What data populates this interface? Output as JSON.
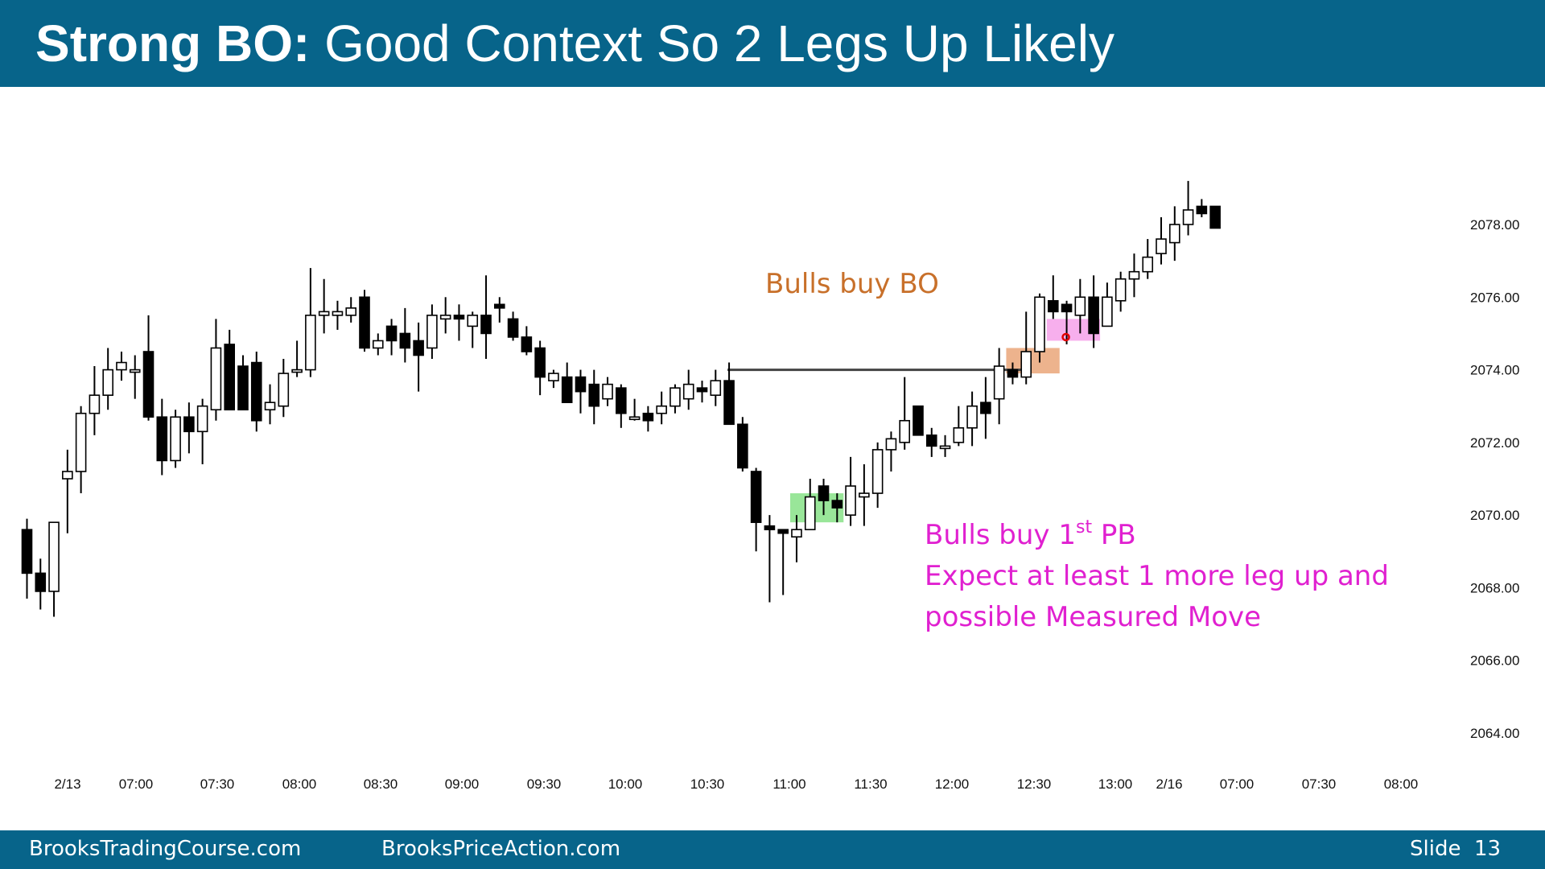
{
  "header": {
    "title_bold": "Strong BO:",
    "title_rest": "Good Context So 2 Legs Up Likely"
  },
  "footer": {
    "left": "BrooksTradingCourse.com",
    "center": "BrooksPriceAction.com",
    "slide_label": "Slide",
    "slide_number": "13"
  },
  "colors": {
    "header_bg": "#07648a",
    "bear_body": "#000000",
    "bull_body": "#ffffff",
    "annotation_bo": "#c8702a",
    "annotation_pb": "#e020d0",
    "zone_green": "#7fe07f",
    "zone_orange": "#e8a070",
    "zone_pink": "#f59be8",
    "marker_red": "#e00000"
  },
  "chart_data": {
    "type": "candlestick",
    "title": "",
    "y_axis": {
      "side": "right",
      "ylim": [
        2062.4,
        2080.6
      ],
      "ticks": [
        "2064.00",
        "2066.00",
        "2068.00",
        "2070.00",
        "2072.00",
        "2074.00",
        "2076.00",
        "2078.00"
      ]
    },
    "x_axis": {
      "tick_labels": [
        "2/13",
        "07:00",
        "07:30",
        "08:00",
        "08:30",
        "09:00",
        "09:30",
        "10:00",
        "10:30",
        "11:00",
        "11:30",
        "12:00",
        "12:30",
        "13:00",
        "2/16",
        "07:00",
        "07:30",
        "08:00"
      ]
    },
    "grid": false,
    "legend": "none",
    "bars": [
      {
        "o": 2069.6,
        "h": 2069.9,
        "l": 2067.7,
        "c": 2068.4
      },
      {
        "o": 2068.4,
        "h": 2068.8,
        "l": 2067.4,
        "c": 2067.9
      },
      {
        "o": 2067.9,
        "h": 2069.8,
        "l": 2067.2,
        "c": 2069.8
      },
      {
        "o": 2071.0,
        "h": 2071.8,
        "l": 2069.5,
        "c": 2071.2
      },
      {
        "o": 2071.2,
        "h": 2073.0,
        "l": 2070.6,
        "c": 2072.8
      },
      {
        "o": 2072.8,
        "h": 2074.1,
        "l": 2072.2,
        "c": 2073.3
      },
      {
        "o": 2073.3,
        "h": 2074.6,
        "l": 2072.9,
        "c": 2074.0
      },
      {
        "o": 2074.0,
        "h": 2074.5,
        "l": 2073.7,
        "c": 2074.2
      },
      {
        "o": 2074.0,
        "h": 2074.4,
        "l": 2073.2,
        "c": 2074.0
      },
      {
        "o": 2074.5,
        "h": 2075.5,
        "l": 2072.6,
        "c": 2072.7
      },
      {
        "o": 2072.7,
        "h": 2073.2,
        "l": 2071.1,
        "c": 2071.5
      },
      {
        "o": 2071.5,
        "h": 2072.9,
        "l": 2071.3,
        "c": 2072.7
      },
      {
        "o": 2072.7,
        "h": 2073.1,
        "l": 2071.7,
        "c": 2072.3
      },
      {
        "o": 2072.3,
        "h": 2073.2,
        "l": 2071.4,
        "c": 2073.0
      },
      {
        "o": 2072.9,
        "h": 2075.4,
        "l": 2072.6,
        "c": 2074.6
      },
      {
        "o": 2074.7,
        "h": 2075.1,
        "l": 2072.9,
        "c": 2072.9
      },
      {
        "o": 2074.1,
        "h": 2074.4,
        "l": 2072.9,
        "c": 2072.9
      },
      {
        "o": 2074.2,
        "h": 2074.5,
        "l": 2072.3,
        "c": 2072.6
      },
      {
        "o": 2072.9,
        "h": 2073.6,
        "l": 2072.5,
        "c": 2073.1
      },
      {
        "o": 2073.0,
        "h": 2074.3,
        "l": 2072.7,
        "c": 2073.9
      },
      {
        "o": 2074.0,
        "h": 2074.8,
        "l": 2073.8,
        "c": 2074.0
      },
      {
        "o": 2074.0,
        "h": 2076.8,
        "l": 2073.8,
        "c": 2075.5
      },
      {
        "o": 2075.5,
        "h": 2076.5,
        "l": 2075.0,
        "c": 2075.6
      },
      {
        "o": 2075.5,
        "h": 2075.9,
        "l": 2075.1,
        "c": 2075.6
      },
      {
        "o": 2075.5,
        "h": 2076.0,
        "l": 2075.3,
        "c": 2075.7
      },
      {
        "o": 2076.0,
        "h": 2076.2,
        "l": 2074.5,
        "c": 2074.6
      },
      {
        "o": 2074.6,
        "h": 2075.0,
        "l": 2074.4,
        "c": 2074.8
      },
      {
        "o": 2075.2,
        "h": 2075.4,
        "l": 2074.4,
        "c": 2074.8
      },
      {
        "o": 2075.0,
        "h": 2075.7,
        "l": 2074.2,
        "c": 2074.6
      },
      {
        "o": 2074.8,
        "h": 2075.3,
        "l": 2073.4,
        "c": 2074.4
      },
      {
        "o": 2074.6,
        "h": 2075.8,
        "l": 2074.3,
        "c": 2075.5
      },
      {
        "o": 2075.4,
        "h": 2076.0,
        "l": 2075.0,
        "c": 2075.5
      },
      {
        "o": 2075.5,
        "h": 2075.8,
        "l": 2074.8,
        "c": 2075.4
      },
      {
        "o": 2075.2,
        "h": 2075.6,
        "l": 2074.6,
        "c": 2075.5
      },
      {
        "o": 2075.5,
        "h": 2076.6,
        "l": 2074.3,
        "c": 2075.0
      },
      {
        "o": 2075.8,
        "h": 2076.0,
        "l": 2075.3,
        "c": 2075.7
      },
      {
        "o": 2075.4,
        "h": 2075.6,
        "l": 2074.8,
        "c": 2074.9
      },
      {
        "o": 2074.9,
        "h": 2075.2,
        "l": 2074.4,
        "c": 2074.5
      },
      {
        "o": 2074.6,
        "h": 2074.8,
        "l": 2073.3,
        "c": 2073.8
      },
      {
        "o": 2073.7,
        "h": 2074.0,
        "l": 2073.5,
        "c": 2073.9
      },
      {
        "o": 2073.8,
        "h": 2074.2,
        "l": 2073.1,
        "c": 2073.1
      },
      {
        "o": 2073.8,
        "h": 2074.0,
        "l": 2072.8,
        "c": 2073.4
      },
      {
        "o": 2073.6,
        "h": 2074.0,
        "l": 2072.5,
        "c": 2073.0
      },
      {
        "o": 2073.2,
        "h": 2073.8,
        "l": 2073.0,
        "c": 2073.6
      },
      {
        "o": 2073.5,
        "h": 2073.6,
        "l": 2072.4,
        "c": 2072.8
      },
      {
        "o": 2072.7,
        "h": 2073.2,
        "l": 2072.6,
        "c": 2072.7
      },
      {
        "o": 2072.8,
        "h": 2073.0,
        "l": 2072.3,
        "c": 2072.6
      },
      {
        "o": 2072.8,
        "h": 2073.4,
        "l": 2072.5,
        "c": 2073.0
      },
      {
        "o": 2073.0,
        "h": 2073.6,
        "l": 2072.8,
        "c": 2073.5
      },
      {
        "o": 2073.2,
        "h": 2074.0,
        "l": 2072.9,
        "c": 2073.6
      },
      {
        "o": 2073.5,
        "h": 2073.7,
        "l": 2073.1,
        "c": 2073.4
      },
      {
        "o": 2073.3,
        "h": 2074.0,
        "l": 2073.0,
        "c": 2073.7
      },
      {
        "o": 2073.7,
        "h": 2074.2,
        "l": 2072.6,
        "c": 2072.5
      },
      {
        "o": 2072.5,
        "h": 2072.7,
        "l": 2071.2,
        "c": 2071.3
      },
      {
        "o": 2071.2,
        "h": 2071.3,
        "l": 2069.0,
        "c": 2069.8
      },
      {
        "o": 2069.7,
        "h": 2070.0,
        "l": 2067.6,
        "c": 2069.6
      },
      {
        "o": 2069.6,
        "h": 2069.6,
        "l": 2067.8,
        "c": 2069.5
      },
      {
        "o": 2069.4,
        "h": 2070.0,
        "l": 2068.7,
        "c": 2069.6
      },
      {
        "o": 2069.6,
        "h": 2071.0,
        "l": 2069.6,
        "c": 2070.5
      },
      {
        "o": 2070.8,
        "h": 2071.0,
        "l": 2070.0,
        "c": 2070.4
      },
      {
        "o": 2070.4,
        "h": 2070.6,
        "l": 2069.8,
        "c": 2070.2
      },
      {
        "o": 2070.0,
        "h": 2071.6,
        "l": 2069.7,
        "c": 2070.8
      },
      {
        "o": 2070.5,
        "h": 2071.4,
        "l": 2069.7,
        "c": 2070.6
      },
      {
        "o": 2070.6,
        "h": 2072.0,
        "l": 2070.2,
        "c": 2071.8
      },
      {
        "o": 2071.8,
        "h": 2072.3,
        "l": 2071.2,
        "c": 2072.1
      },
      {
        "o": 2072.0,
        "h": 2073.8,
        "l": 2071.8,
        "c": 2072.6
      },
      {
        "o": 2073.0,
        "h": 2073.0,
        "l": 2072.2,
        "c": 2072.2
      },
      {
        "o": 2072.2,
        "h": 2072.4,
        "l": 2071.6,
        "c": 2071.9
      },
      {
        "o": 2071.9,
        "h": 2072.2,
        "l": 2071.6,
        "c": 2071.9
      },
      {
        "o": 2072.0,
        "h": 2073.0,
        "l": 2071.9,
        "c": 2072.4
      },
      {
        "o": 2072.4,
        "h": 2073.4,
        "l": 2071.9,
        "c": 2073.0
      },
      {
        "o": 2073.1,
        "h": 2073.8,
        "l": 2072.1,
        "c": 2072.8
      },
      {
        "o": 2073.2,
        "h": 2074.6,
        "l": 2072.5,
        "c": 2074.1
      },
      {
        "o": 2074.0,
        "h": 2074.2,
        "l": 2073.6,
        "c": 2073.8
      },
      {
        "o": 2073.8,
        "h": 2075.6,
        "l": 2073.6,
        "c": 2074.5
      },
      {
        "o": 2074.5,
        "h": 2076.1,
        "l": 2074.2,
        "c": 2076.0
      },
      {
        "o": 2075.9,
        "h": 2076.6,
        "l": 2075.4,
        "c": 2075.6
      },
      {
        "o": 2075.8,
        "h": 2075.9,
        "l": 2074.7,
        "c": 2075.6
      },
      {
        "o": 2075.5,
        "h": 2076.5,
        "l": 2075.0,
        "c": 2076.0
      },
      {
        "o": 2076.0,
        "h": 2076.6,
        "l": 2074.6,
        "c": 2075.0
      },
      {
        "o": 2075.2,
        "h": 2076.4,
        "l": 2075.2,
        "c": 2076.0
      },
      {
        "o": 2075.9,
        "h": 2076.7,
        "l": 2075.6,
        "c": 2076.5
      },
      {
        "o": 2076.5,
        "h": 2077.2,
        "l": 2076.0,
        "c": 2076.7
      },
      {
        "o": 2076.7,
        "h": 2077.6,
        "l": 2076.5,
        "c": 2077.1
      },
      {
        "o": 2077.2,
        "h": 2078.2,
        "l": 2076.9,
        "c": 2077.6
      },
      {
        "o": 2077.5,
        "h": 2078.5,
        "l": 2077.0,
        "c": 2078.0
      },
      {
        "o": 2078.0,
        "h": 2079.2,
        "l": 2077.7,
        "c": 2078.4
      },
      {
        "o": 2078.5,
        "h": 2078.7,
        "l": 2078.2,
        "c": 2078.3
      },
      {
        "o": 2078.5,
        "h": 2078.5,
        "l": 2077.9,
        "c": 2077.9
      }
    ],
    "annotations": [
      {
        "text": "Bulls buy BO",
        "color": "#c8702a"
      },
      {
        "text_lines": [
          "Bulls buy 1",
          "st",
          " PB",
          "Expect at least 1 more leg up and",
          "possible Measured Move"
        ],
        "color": "#e020d0"
      }
    ],
    "horizontal_line": {
      "price": 2074.0,
      "from_bar": 52,
      "to_bar": 74
    },
    "zones": [
      {
        "color": "#7fe07f",
        "from_bar": 57,
        "to_bar": 60,
        "price_low": 2069.8,
        "price_high": 2070.6
      },
      {
        "color": "#e8a070",
        "from_bar": 73,
        "to_bar": 76,
        "price_low": 2073.9,
        "price_high": 2074.6
      },
      {
        "color": "#f59be8",
        "from_bar": 76,
        "to_bar": 79,
        "price_low": 2074.8,
        "price_high": 2075.4
      }
    ],
    "marker": {
      "bar": 77,
      "price": 2074.9,
      "color": "#e00000"
    }
  }
}
